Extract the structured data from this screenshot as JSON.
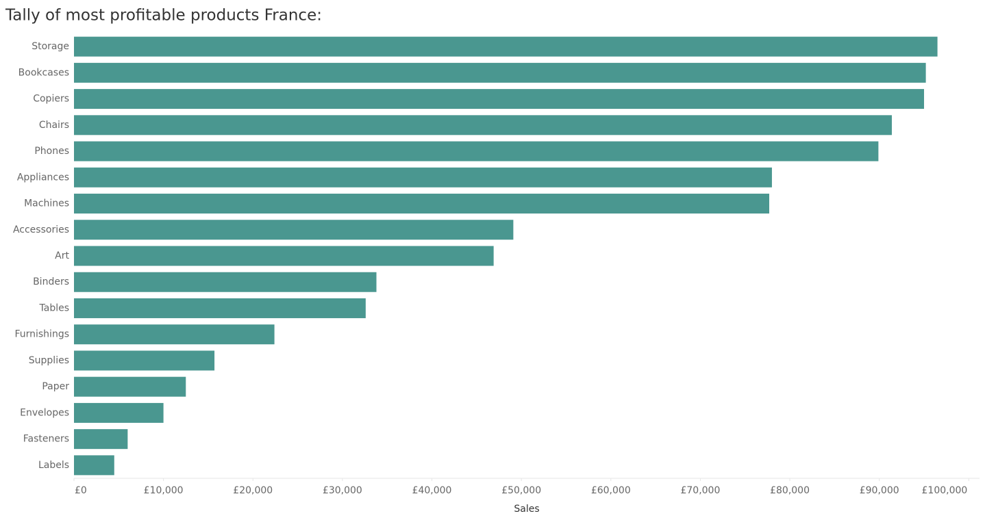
{
  "chart_data": {
    "type": "bar",
    "orientation": "horizontal",
    "title": "Tally of most profitable products France:",
    "x_label": "Sales",
    "categories": [
      "Storage",
      "Bookcases",
      "Copiers",
      "Chairs",
      "Phones",
      "Appliances",
      "Machines",
      "Accessories",
      "Art",
      "Binders",
      "Tables",
      "Furnishings",
      "Supplies",
      "Paper",
      "Envelopes",
      "Fasteners",
      "Labels"
    ],
    "values": [
      96500,
      95200,
      95000,
      91400,
      89900,
      78000,
      77700,
      49100,
      46900,
      33800,
      32600,
      22400,
      15700,
      12500,
      10000,
      6000,
      4500
    ],
    "color": "#4a9790",
    "xlim": [
      0,
      101200
    ],
    "xticks": [
      {
        "value": 0,
        "label": "£0"
      },
      {
        "value": 10000,
        "label": "£10,000"
      },
      {
        "value": 20000,
        "label": "£20,000"
      },
      {
        "value": 30000,
        "label": "£30,000"
      },
      {
        "value": 40000,
        "label": "£40,000"
      },
      {
        "value": 50000,
        "label": "£50,000"
      },
      {
        "value": 60000,
        "label": "£60,000"
      },
      {
        "value": 70000,
        "label": "£70,000"
      },
      {
        "value": 80000,
        "label": "£80,000"
      },
      {
        "value": 90000,
        "label": "£90,000"
      },
      {
        "value": 100000,
        "label": "£100,000"
      }
    ],
    "grid": false
  }
}
